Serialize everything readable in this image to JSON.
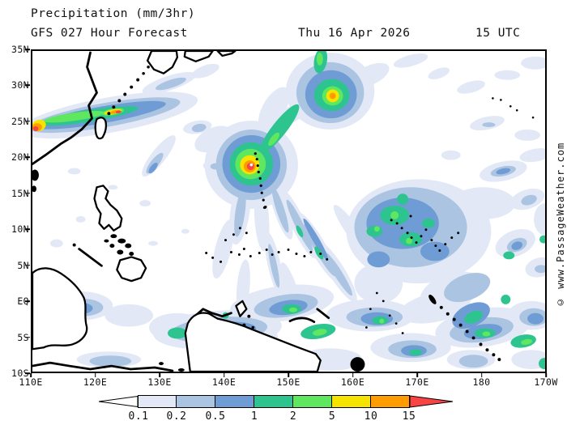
{
  "header": {
    "title": "Precipitation (mm/3hr)",
    "forecast": "GFS 027 Hour Forecast",
    "date": "Thu 16 Apr 2026",
    "time": "15 UTC"
  },
  "watermark": "© www.PassageWeather.com",
  "map": {
    "lat_labels": [
      "35N",
      "30N",
      "25N",
      "20N",
      "15N",
      "10N",
      "5N",
      "EQ",
      "5S",
      "10S"
    ],
    "lon_labels": [
      "110E",
      "120E",
      "130E",
      "140E",
      "150E",
      "160E",
      "170E",
      "180",
      "170W"
    ],
    "features": [
      {
        "name": "tropical-cyclone",
        "approx_position": "20N 145E",
        "max_bin": ">15 mm/3hr"
      },
      {
        "name": "frontal-rain-band",
        "approx_position": "25N 110E-122E",
        "max_bin": ">15 mm/3hr"
      },
      {
        "name": "low-pressure-rain-area",
        "approx_position": "28N 156E",
        "max_bin": "10-15 mm/3hr"
      },
      {
        "name": "equatorial-convection",
        "approx_position": "EQ-10S 110E-170W",
        "max_bin": "10-15 mm/3hr"
      }
    ]
  },
  "legend": {
    "units": "mm/3hr",
    "thresholds": [
      "0.1",
      "0.2",
      "0.5",
      "1",
      "2",
      "5",
      "10",
      "15"
    ],
    "bin_colors": [
      "#e2e8f5",
      "#aac4e2",
      "#6f9cd4",
      "#2dc48f",
      "#5fe75f",
      "#f6e400",
      "#ff9c00"
    ],
    "underflow_color": "#ffffff",
    "overflow_color": "#f84444"
  }
}
